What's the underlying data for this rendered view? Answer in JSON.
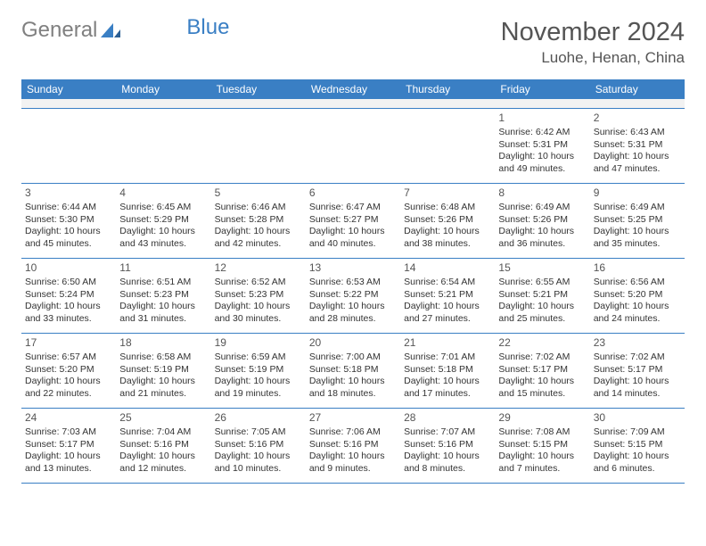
{
  "logo": {
    "text_gray": "General",
    "text_blue": "Blue"
  },
  "title": "November 2024",
  "location": "Luohe, Henan, China",
  "colors": {
    "header_bg": "#3a7fc4",
    "header_text": "#ffffff",
    "border": "#3a7fc4",
    "spacer_bg": "#f2f2f2",
    "body_text": "#333333",
    "title_text": "#555555",
    "logo_gray": "#808080"
  },
  "day_headers": [
    "Sunday",
    "Monday",
    "Tuesday",
    "Wednesday",
    "Thursday",
    "Friday",
    "Saturday"
  ],
  "weeks": [
    [
      null,
      null,
      null,
      null,
      null,
      {
        "n": "1",
        "sunrise": "Sunrise: 6:42 AM",
        "sunset": "Sunset: 5:31 PM",
        "day1": "Daylight: 10 hours",
        "day2": "and 49 minutes."
      },
      {
        "n": "2",
        "sunrise": "Sunrise: 6:43 AM",
        "sunset": "Sunset: 5:31 PM",
        "day1": "Daylight: 10 hours",
        "day2": "and 47 minutes."
      }
    ],
    [
      {
        "n": "3",
        "sunrise": "Sunrise: 6:44 AM",
        "sunset": "Sunset: 5:30 PM",
        "day1": "Daylight: 10 hours",
        "day2": "and 45 minutes."
      },
      {
        "n": "4",
        "sunrise": "Sunrise: 6:45 AM",
        "sunset": "Sunset: 5:29 PM",
        "day1": "Daylight: 10 hours",
        "day2": "and 43 minutes."
      },
      {
        "n": "5",
        "sunrise": "Sunrise: 6:46 AM",
        "sunset": "Sunset: 5:28 PM",
        "day1": "Daylight: 10 hours",
        "day2": "and 42 minutes."
      },
      {
        "n": "6",
        "sunrise": "Sunrise: 6:47 AM",
        "sunset": "Sunset: 5:27 PM",
        "day1": "Daylight: 10 hours",
        "day2": "and 40 minutes."
      },
      {
        "n": "7",
        "sunrise": "Sunrise: 6:48 AM",
        "sunset": "Sunset: 5:26 PM",
        "day1": "Daylight: 10 hours",
        "day2": "and 38 minutes."
      },
      {
        "n": "8",
        "sunrise": "Sunrise: 6:49 AM",
        "sunset": "Sunset: 5:26 PM",
        "day1": "Daylight: 10 hours",
        "day2": "and 36 minutes."
      },
      {
        "n": "9",
        "sunrise": "Sunrise: 6:49 AM",
        "sunset": "Sunset: 5:25 PM",
        "day1": "Daylight: 10 hours",
        "day2": "and 35 minutes."
      }
    ],
    [
      {
        "n": "10",
        "sunrise": "Sunrise: 6:50 AM",
        "sunset": "Sunset: 5:24 PM",
        "day1": "Daylight: 10 hours",
        "day2": "and 33 minutes."
      },
      {
        "n": "11",
        "sunrise": "Sunrise: 6:51 AM",
        "sunset": "Sunset: 5:23 PM",
        "day1": "Daylight: 10 hours",
        "day2": "and 31 minutes."
      },
      {
        "n": "12",
        "sunrise": "Sunrise: 6:52 AM",
        "sunset": "Sunset: 5:23 PM",
        "day1": "Daylight: 10 hours",
        "day2": "and 30 minutes."
      },
      {
        "n": "13",
        "sunrise": "Sunrise: 6:53 AM",
        "sunset": "Sunset: 5:22 PM",
        "day1": "Daylight: 10 hours",
        "day2": "and 28 minutes."
      },
      {
        "n": "14",
        "sunrise": "Sunrise: 6:54 AM",
        "sunset": "Sunset: 5:21 PM",
        "day1": "Daylight: 10 hours",
        "day2": "and 27 minutes."
      },
      {
        "n": "15",
        "sunrise": "Sunrise: 6:55 AM",
        "sunset": "Sunset: 5:21 PM",
        "day1": "Daylight: 10 hours",
        "day2": "and 25 minutes."
      },
      {
        "n": "16",
        "sunrise": "Sunrise: 6:56 AM",
        "sunset": "Sunset: 5:20 PM",
        "day1": "Daylight: 10 hours",
        "day2": "and 24 minutes."
      }
    ],
    [
      {
        "n": "17",
        "sunrise": "Sunrise: 6:57 AM",
        "sunset": "Sunset: 5:20 PM",
        "day1": "Daylight: 10 hours",
        "day2": "and 22 minutes."
      },
      {
        "n": "18",
        "sunrise": "Sunrise: 6:58 AM",
        "sunset": "Sunset: 5:19 PM",
        "day1": "Daylight: 10 hours",
        "day2": "and 21 minutes."
      },
      {
        "n": "19",
        "sunrise": "Sunrise: 6:59 AM",
        "sunset": "Sunset: 5:19 PM",
        "day1": "Daylight: 10 hours",
        "day2": "and 19 minutes."
      },
      {
        "n": "20",
        "sunrise": "Sunrise: 7:00 AM",
        "sunset": "Sunset: 5:18 PM",
        "day1": "Daylight: 10 hours",
        "day2": "and 18 minutes."
      },
      {
        "n": "21",
        "sunrise": "Sunrise: 7:01 AM",
        "sunset": "Sunset: 5:18 PM",
        "day1": "Daylight: 10 hours",
        "day2": "and 17 minutes."
      },
      {
        "n": "22",
        "sunrise": "Sunrise: 7:02 AM",
        "sunset": "Sunset: 5:17 PM",
        "day1": "Daylight: 10 hours",
        "day2": "and 15 minutes."
      },
      {
        "n": "23",
        "sunrise": "Sunrise: 7:02 AM",
        "sunset": "Sunset: 5:17 PM",
        "day1": "Daylight: 10 hours",
        "day2": "and 14 minutes."
      }
    ],
    [
      {
        "n": "24",
        "sunrise": "Sunrise: 7:03 AM",
        "sunset": "Sunset: 5:17 PM",
        "day1": "Daylight: 10 hours",
        "day2": "and 13 minutes."
      },
      {
        "n": "25",
        "sunrise": "Sunrise: 7:04 AM",
        "sunset": "Sunset: 5:16 PM",
        "day1": "Daylight: 10 hours",
        "day2": "and 12 minutes."
      },
      {
        "n": "26",
        "sunrise": "Sunrise: 7:05 AM",
        "sunset": "Sunset: 5:16 PM",
        "day1": "Daylight: 10 hours",
        "day2": "and 10 minutes."
      },
      {
        "n": "27",
        "sunrise": "Sunrise: 7:06 AM",
        "sunset": "Sunset: 5:16 PM",
        "day1": "Daylight: 10 hours",
        "day2": "and 9 minutes."
      },
      {
        "n": "28",
        "sunrise": "Sunrise: 7:07 AM",
        "sunset": "Sunset: 5:16 PM",
        "day1": "Daylight: 10 hours",
        "day2": "and 8 minutes."
      },
      {
        "n": "29",
        "sunrise": "Sunrise: 7:08 AM",
        "sunset": "Sunset: 5:15 PM",
        "day1": "Daylight: 10 hours",
        "day2": "and 7 minutes."
      },
      {
        "n": "30",
        "sunrise": "Sunrise: 7:09 AM",
        "sunset": "Sunset: 5:15 PM",
        "day1": "Daylight: 10 hours",
        "day2": "and 6 minutes."
      }
    ]
  ]
}
